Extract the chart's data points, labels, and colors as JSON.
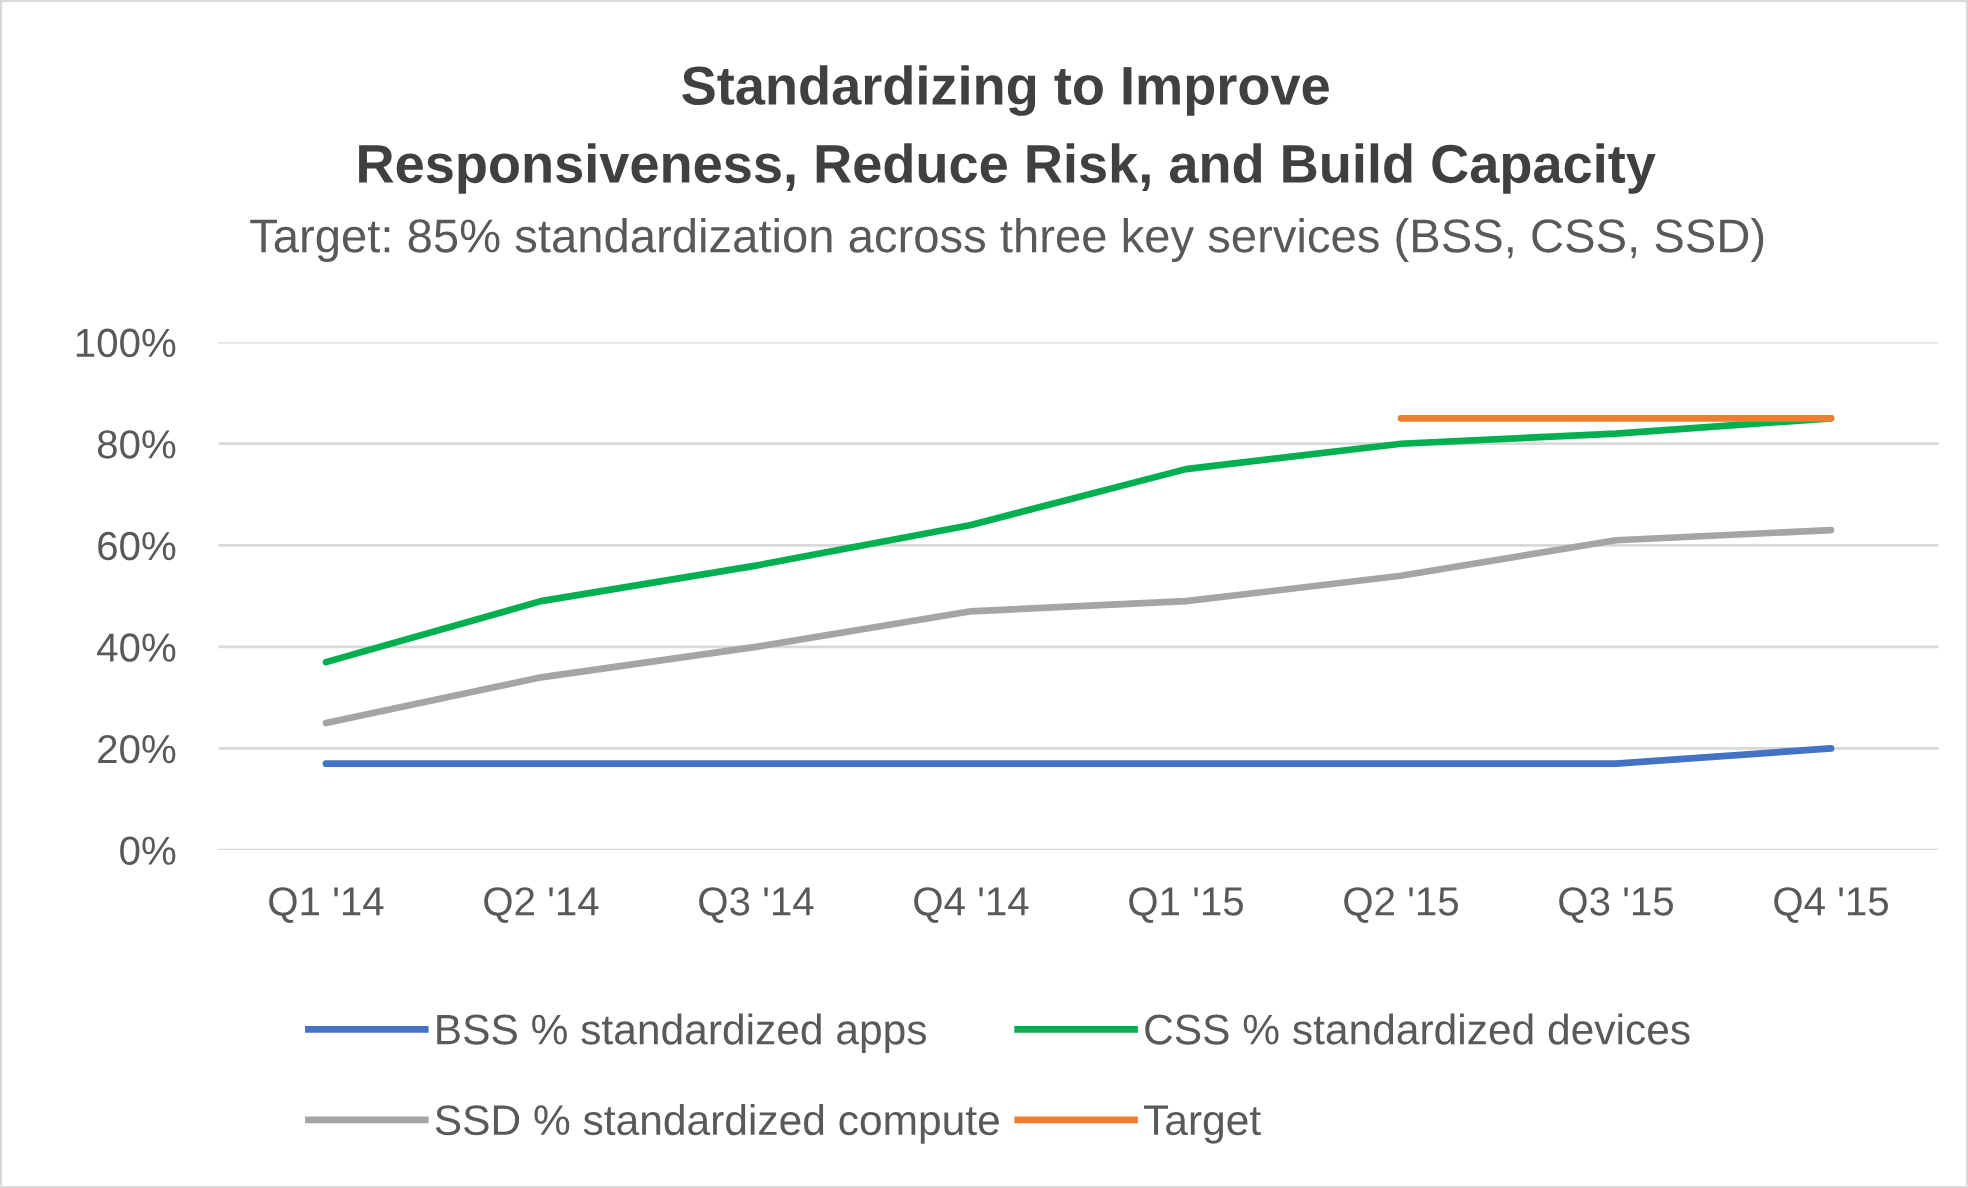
{
  "chart_data": {
    "type": "line",
    "title": "Standardizing to Improve\nResponsiveness, Reduce Risk, and Build Capacity",
    "subtitle": "Target: 85% standardization across three key services (BSS, CSS, SSD)",
    "categories": [
      "Q1 '14",
      "Q2 '14",
      "Q3 '14",
      "Q4 '14",
      "Q1 '15",
      "Q2 '15",
      "Q3 '15",
      "Q4 '15"
    ],
    "series": [
      {
        "name": "BSS % standardized apps",
        "color": "#4472c4",
        "values": [
          17,
          17,
          17,
          17,
          17,
          17,
          17,
          20
        ]
      },
      {
        "name": "CSS % standardized devices",
        "color": "#00b050",
        "values": [
          37,
          49,
          56,
          64,
          75,
          80,
          82,
          85
        ]
      },
      {
        "name": "SSD % standardized compute",
        "color": "#a5a5a5",
        "values": [
          25,
          34,
          40,
          47,
          49,
          54,
          61,
          63
        ]
      },
      {
        "name": "Target",
        "color": "#ed7d31",
        "values": [
          null,
          null,
          null,
          null,
          null,
          85,
          85,
          85
        ]
      }
    ],
    "ylim": [
      0,
      100
    ],
    "yticks": [
      {
        "value": 0,
        "label": "0%"
      },
      {
        "value": 20,
        "label": "20%"
      },
      {
        "value": 40,
        "label": "40%"
      },
      {
        "value": 60,
        "label": "60%"
      },
      {
        "value": 80,
        "label": "80%"
      },
      {
        "value": 100,
        "label": "100%"
      }
    ],
    "grid": "y",
    "legend": "bottom",
    "marker": "none",
    "line_style": "solid"
  }
}
